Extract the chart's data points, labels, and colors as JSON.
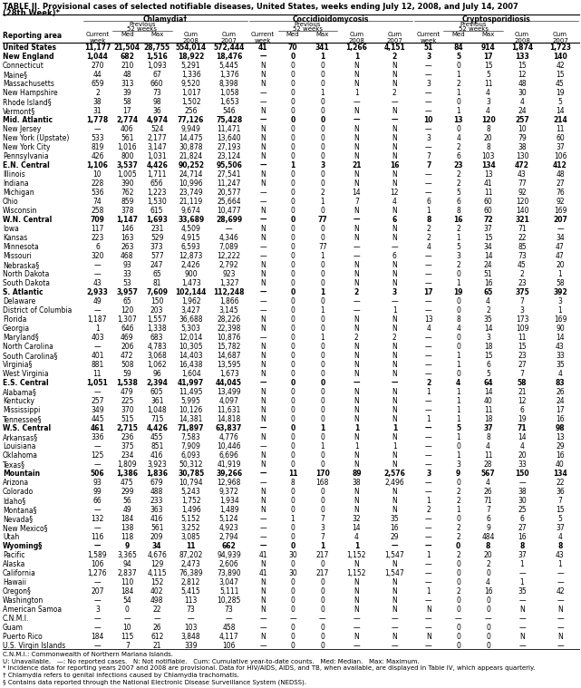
{
  "title_line1": "TABLE II. Provisional cases of selected notifiable diseases, United States, weeks ending July 12, 2008, and July 14, 2007",
  "title_line2": "(28th Week)*",
  "col_groups": [
    "Chlamydia†",
    "Coccidioidomycosis",
    "Cryptosporidiosis"
  ],
  "rows": [
    [
      "United States",
      "11,177",
      "21,504",
      "28,755",
      "554,014",
      "572,444",
      "41",
      "70",
      "341",
      "1,266",
      "4,151",
      "51",
      "84",
      "914",
      "1,874",
      "1,723"
    ],
    [
      "New England",
      "1,044",
      "682",
      "1,516",
      "18,922",
      "18,476",
      "—",
      "0",
      "1",
      "1",
      "2",
      "3",
      "5",
      "17",
      "133",
      "140"
    ],
    [
      "Connecticut",
      "270",
      "210",
      "1,093",
      "5,291",
      "5,445",
      "N",
      "0",
      "0",
      "N",
      "N",
      "—",
      "0",
      "15",
      "15",
      "42"
    ],
    [
      "Maine§",
      "44",
      "48",
      "67",
      "1,336",
      "1,376",
      "N",
      "0",
      "0",
      "N",
      "N",
      "—",
      "1",
      "5",
      "12",
      "15"
    ],
    [
      "Massachusetts",
      "659",
      "313",
      "660",
      "9,520",
      "8,398",
      "N",
      "0",
      "0",
      "N",
      "N",
      "3",
      "2",
      "11",
      "48",
      "45"
    ],
    [
      "New Hampshire",
      "2",
      "39",
      "73",
      "1,017",
      "1,058",
      "—",
      "0",
      "1",
      "1",
      "2",
      "—",
      "1",
      "4",
      "30",
      "19"
    ],
    [
      "Rhode Island§",
      "38",
      "58",
      "98",
      "1,502",
      "1,653",
      "—",
      "0",
      "0",
      "—",
      "—",
      "—",
      "0",
      "3",
      "4",
      "5"
    ],
    [
      "Vermont§",
      "31",
      "17",
      "36",
      "256",
      "546",
      "N",
      "0",
      "0",
      "N",
      "N",
      "—",
      "1",
      "4",
      "24",
      "14"
    ],
    [
      "Mid. Atlantic",
      "1,778",
      "2,774",
      "4,974",
      "77,126",
      "75,428",
      "—",
      "0",
      "0",
      "—",
      "—",
      "10",
      "13",
      "120",
      "257",
      "214"
    ],
    [
      "New Jersey",
      "—",
      "406",
      "524",
      "9,949",
      "11,471",
      "N",
      "0",
      "0",
      "N",
      "N",
      "—",
      "0",
      "8",
      "10",
      "11"
    ],
    [
      "New York (Upstate)",
      "533",
      "561",
      "2,177",
      "14,475",
      "13,640",
      "N",
      "0",
      "0",
      "N",
      "N",
      "3",
      "4",
      "20",
      "79",
      "60"
    ],
    [
      "New York City",
      "819",
      "1,016",
      "3,147",
      "30,878",
      "27,193",
      "N",
      "0",
      "0",
      "N",
      "N",
      "—",
      "2",
      "8",
      "38",
      "37"
    ],
    [
      "Pennsylvania",
      "426",
      "800",
      "1,031",
      "21,824",
      "23,124",
      "N",
      "0",
      "0",
      "N",
      "N",
      "7",
      "6",
      "103",
      "130",
      "106"
    ],
    [
      "E.N. Central",
      "1,106",
      "3,537",
      "4,426",
      "90,252",
      "95,506",
      "—",
      "1",
      "3",
      "21",
      "16",
      "7",
      "23",
      "134",
      "472",
      "412"
    ],
    [
      "Illinois",
      "10",
      "1,005",
      "1,711",
      "24,714",
      "27,541",
      "N",
      "0",
      "0",
      "N",
      "N",
      "—",
      "2",
      "13",
      "43",
      "48"
    ],
    [
      "Indiana",
      "228",
      "390",
      "656",
      "10,996",
      "11,247",
      "N",
      "0",
      "0",
      "N",
      "N",
      "—",
      "2",
      "41",
      "77",
      "27"
    ],
    [
      "Michigan",
      "536",
      "762",
      "1,223",
      "23,749",
      "20,577",
      "—",
      "0",
      "2",
      "14",
      "12",
      "—",
      "5",
      "11",
      "92",
      "76"
    ],
    [
      "Ohio",
      "74",
      "859",
      "1,530",
      "21,119",
      "25,664",
      "—",
      "0",
      "1",
      "7",
      "4",
      "6",
      "6",
      "60",
      "120",
      "92"
    ],
    [
      "Wisconsin",
      "258",
      "378",
      "615",
      "9,674",
      "10,477",
      "N",
      "0",
      "0",
      "N",
      "N",
      "1",
      "8",
      "60",
      "140",
      "169"
    ],
    [
      "W.N. Central",
      "709",
      "1,147",
      "1,693",
      "33,689",
      "28,699",
      "—",
      "0",
      "77",
      "—",
      "6",
      "8",
      "16",
      "72",
      "321",
      "207"
    ],
    [
      "Iowa",
      "117",
      "146",
      "231",
      "4,509",
      "—",
      "N",
      "0",
      "0",
      "N",
      "N",
      "2",
      "2",
      "37",
      "71",
      "—"
    ],
    [
      "Kansas",
      "223",
      "163",
      "529",
      "4,915",
      "4,346",
      "N",
      "0",
      "0",
      "N",
      "N",
      "2",
      "1",
      "15",
      "22",
      "34"
    ],
    [
      "Minnesota",
      "6",
      "263",
      "373",
      "6,593",
      "7,089",
      "—",
      "0",
      "77",
      "—",
      "—",
      "4",
      "5",
      "34",
      "85",
      "47"
    ],
    [
      "Missouri",
      "320",
      "468",
      "577",
      "12,873",
      "12,222",
      "—",
      "0",
      "1",
      "—",
      "6",
      "—",
      "3",
      "14",
      "73",
      "47"
    ],
    [
      "Nebraska§",
      "—",
      "93",
      "247",
      "2,426",
      "2,792",
      "N",
      "0",
      "0",
      "N",
      "N",
      "—",
      "2",
      "24",
      "45",
      "20"
    ],
    [
      "North Dakota",
      "—",
      "33",
      "65",
      "900",
      "923",
      "N",
      "0",
      "0",
      "N",
      "N",
      "—",
      "0",
      "51",
      "2",
      "1"
    ],
    [
      "South Dakota",
      "43",
      "53",
      "81",
      "1,473",
      "1,327",
      "N",
      "0",
      "0",
      "N",
      "N",
      "—",
      "1",
      "16",
      "23",
      "58"
    ],
    [
      "S. Atlantic",
      "2,933",
      "3,957",
      "7,609",
      "102,144",
      "112,248",
      "—",
      "0",
      "1",
      "2",
      "3",
      "17",
      "19",
      "65",
      "375",
      "392"
    ],
    [
      "Delaware",
      "49",
      "65",
      "150",
      "1,962",
      "1,866",
      "—",
      "0",
      "0",
      "—",
      "—",
      "—",
      "0",
      "4",
      "7",
      "3"
    ],
    [
      "District of Columbia",
      "—",
      "120",
      "203",
      "3,427",
      "3,145",
      "—",
      "0",
      "1",
      "—",
      "1",
      "—",
      "0",
      "2",
      "3",
      "1"
    ],
    [
      "Florida",
      "1,187",
      "1,307",
      "1,557",
      "36,688",
      "28,226",
      "N",
      "0",
      "0",
      "N",
      "N",
      "13",
      "8",
      "35",
      "173",
      "169"
    ],
    [
      "Georgia",
      "1",
      "646",
      "1,338",
      "5,303",
      "22,398",
      "N",
      "0",
      "0",
      "N",
      "N",
      "4",
      "4",
      "14",
      "109",
      "90"
    ],
    [
      "Maryland§",
      "403",
      "469",
      "683",
      "12,014",
      "10,876",
      "—",
      "0",
      "1",
      "2",
      "2",
      "—",
      "0",
      "3",
      "11",
      "14"
    ],
    [
      "North Carolina",
      "—",
      "206",
      "4,783",
      "10,305",
      "15,782",
      "N",
      "0",
      "0",
      "N",
      "N",
      "—",
      "0",
      "18",
      "15",
      "43"
    ],
    [
      "South Carolina§",
      "401",
      "472",
      "3,068",
      "14,403",
      "14,687",
      "N",
      "0",
      "0",
      "N",
      "N",
      "—",
      "1",
      "15",
      "23",
      "33"
    ],
    [
      "Virginia§",
      "881",
      "508",
      "1,062",
      "16,438",
      "13,595",
      "N",
      "0",
      "0",
      "N",
      "N",
      "—",
      "1",
      "6",
      "27",
      "35"
    ],
    [
      "West Virginia",
      "11",
      "59",
      "96",
      "1,604",
      "1,673",
      "N",
      "0",
      "0",
      "N",
      "N",
      "—",
      "0",
      "5",
      "7",
      "4"
    ],
    [
      "E.S. Central",
      "1,051",
      "1,538",
      "2,394",
      "41,997",
      "44,045",
      "—",
      "0",
      "0",
      "—",
      "—",
      "2",
      "4",
      "64",
      "58",
      "83"
    ],
    [
      "Alabama§",
      "—",
      "479",
      "605",
      "11,495",
      "13,499",
      "N",
      "0",
      "0",
      "N",
      "N",
      "1",
      "1",
      "14",
      "21",
      "26"
    ],
    [
      "Kentucky",
      "257",
      "225",
      "361",
      "5,995",
      "4,097",
      "N",
      "0",
      "0",
      "N",
      "N",
      "—",
      "1",
      "40",
      "12",
      "24"
    ],
    [
      "Mississippi",
      "349",
      "370",
      "1,048",
      "10,126",
      "11,631",
      "N",
      "0",
      "0",
      "N",
      "N",
      "—",
      "1",
      "11",
      "6",
      "17"
    ],
    [
      "Tennessee§",
      "445",
      "515",
      "715",
      "14,381",
      "14,818",
      "N",
      "0",
      "0",
      "N",
      "N",
      "1",
      "1",
      "18",
      "19",
      "16"
    ],
    [
      "W.S. Central",
      "461",
      "2,715",
      "4,426",
      "71,897",
      "63,837",
      "—",
      "0",
      "1",
      "1",
      "1",
      "—",
      "5",
      "37",
      "71",
      "98"
    ],
    [
      "Arkansas§",
      "336",
      "236",
      "455",
      "7,583",
      "4,776",
      "N",
      "0",
      "0",
      "N",
      "N",
      "—",
      "1",
      "8",
      "14",
      "13"
    ],
    [
      "Louisiana",
      "—",
      "375",
      "851",
      "7,909",
      "10,446",
      "—",
      "0",
      "1",
      "1",
      "1",
      "—",
      "0",
      "4",
      "4",
      "29"
    ],
    [
      "Oklahoma",
      "125",
      "234",
      "416",
      "6,093",
      "6,696",
      "N",
      "0",
      "0",
      "N",
      "N",
      "—",
      "1",
      "11",
      "20",
      "16"
    ],
    [
      "Texas§",
      "—",
      "1,809",
      "3,923",
      "50,312",
      "41,919",
      "N",
      "0",
      "0",
      "N",
      "N",
      "—",
      "3",
      "28",
      "33",
      "40"
    ],
    [
      "Mountain",
      "506",
      "1,386",
      "1,836",
      "30,785",
      "39,266",
      "—",
      "11",
      "170",
      "89",
      "2,576",
      "3",
      "9",
      "567",
      "150",
      "134"
    ],
    [
      "Arizona",
      "93",
      "475",
      "679",
      "10,794",
      "12,968",
      "—",
      "8",
      "168",
      "38",
      "2,496",
      "—",
      "0",
      "4",
      "—",
      "22"
    ],
    [
      "Colorado",
      "99",
      "299",
      "488",
      "5,243",
      "9,372",
      "N",
      "0",
      "0",
      "N",
      "N",
      "—",
      "2",
      "26",
      "38",
      "36"
    ],
    [
      "Idaho§",
      "66",
      "56",
      "233",
      "1,752",
      "1,934",
      "N",
      "0",
      "0",
      "N",
      "N",
      "1",
      "2",
      "71",
      "30",
      "7"
    ],
    [
      "Montana§",
      "—",
      "49",
      "363",
      "1,496",
      "1,489",
      "N",
      "0",
      "0",
      "N",
      "N",
      "2",
      "1",
      "7",
      "25",
      "15"
    ],
    [
      "Nevada§",
      "132",
      "184",
      "416",
      "5,152",
      "5,124",
      "—",
      "1",
      "7",
      "32",
      "35",
      "—",
      "0",
      "6",
      "6",
      "5"
    ],
    [
      "New Mexico§",
      "—",
      "138",
      "561",
      "3,252",
      "4,923",
      "—",
      "0",
      "3",
      "14",
      "16",
      "—",
      "2",
      "9",
      "27",
      "37"
    ],
    [
      "Utah",
      "116",
      "118",
      "209",
      "3,085",
      "2,794",
      "—",
      "0",
      "7",
      "4",
      "29",
      "—",
      "2",
      "484",
      "16",
      "4"
    ],
    [
      "Wyoming§",
      "—",
      "9",
      "34",
      "11",
      "662",
      "—",
      "0",
      "1",
      "1",
      "—",
      "—",
      "0",
      "8",
      "8",
      "8"
    ],
    [
      "Pacific",
      "1,589",
      "3,365",
      "4,676",
      "87,202",
      "94,939",
      "41",
      "30",
      "217",
      "1,152",
      "1,547",
      "1",
      "2",
      "20",
      "37",
      "43"
    ],
    [
      "Alaska",
      "106",
      "94",
      "129",
      "2,473",
      "2,606",
      "N",
      "0",
      "0",
      "N",
      "N",
      "—",
      "0",
      "2",
      "1",
      "1"
    ],
    [
      "California",
      "1,276",
      "2,837",
      "4,115",
      "76,389",
      "73,890",
      "41",
      "30",
      "217",
      "1,152",
      "1,547",
      "—",
      "0",
      "0",
      "—",
      "—"
    ],
    [
      "Hawaii",
      "—",
      "110",
      "152",
      "2,812",
      "3,047",
      "N",
      "0",
      "0",
      "N",
      "N",
      "—",
      "0",
      "4",
      "1",
      "—"
    ],
    [
      "Oregon§",
      "207",
      "184",
      "402",
      "5,415",
      "5,111",
      "N",
      "0",
      "0",
      "N",
      "N",
      "1",
      "2",
      "16",
      "35",
      "42"
    ],
    [
      "Washington",
      "—",
      "54",
      "498",
      "113",
      "10,285",
      "N",
      "0",
      "0",
      "N",
      "N",
      "—",
      "0",
      "0",
      "—",
      "—"
    ],
    [
      "American Samoa",
      "3",
      "0",
      "22",
      "73",
      "73",
      "N",
      "0",
      "0",
      "N",
      "N",
      "N",
      "0",
      "0",
      "N",
      "N"
    ],
    [
      "C.N.M.I.",
      "—",
      "—",
      "—",
      "—",
      "—",
      "—",
      "—",
      "—",
      "—",
      "—",
      "—",
      "—",
      "—",
      "—",
      "—"
    ],
    [
      "Guam",
      "—",
      "10",
      "26",
      "103",
      "458",
      "—",
      "0",
      "0",
      "—",
      "—",
      "—",
      "0",
      "0",
      "—",
      "—"
    ],
    [
      "Puerto Rico",
      "184",
      "115",
      "612",
      "3,848",
      "4,117",
      "N",
      "0",
      "0",
      "N",
      "N",
      "N",
      "0",
      "0",
      "N",
      "N"
    ],
    [
      "U.S. Virgin Islands",
      "—",
      "7",
      "21",
      "339",
      "106",
      "—",
      "0",
      "0",
      "—",
      "—",
      "—",
      "0",
      "0",
      "—",
      "—"
    ]
  ],
  "bold_rows": [
    0,
    1,
    8,
    13,
    19,
    27,
    37,
    42,
    47,
    55
  ],
  "footnotes": [
    "C.N.M.I.: Commonwealth of Northern Mariana Islands.",
    "U: Unavailable.   —: No reported cases.   N: Not notifiable.   Cum: Cumulative year-to-date counts.   Med: Median.   Max: Maximum.",
    "* Incidence data for reporting years 2007 and 2008 are provisional. Data for HIV/AIDS, AIDS, and TB, when available, are displayed in Table IV, which appears quarterly.",
    "† Chlamydia refers to genital infections caused by Chlamydia trachomatis.",
    "§ Contains data reported through the National Electronic Disease Surveillance System (NEDSS)."
  ]
}
